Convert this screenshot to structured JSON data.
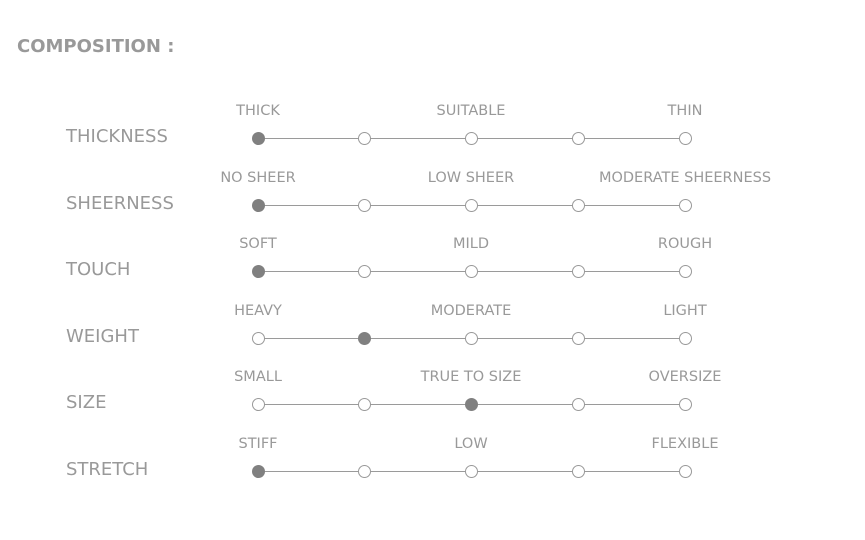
{
  "title": "COMPOSITION :",
  "colors": {
    "text": "#999999",
    "selected": "#808080",
    "line": "#9a9a9a"
  },
  "rows": [
    {
      "label": "THICKNESS",
      "options": [
        "THICK",
        "SUITABLE",
        "THIN"
      ],
      "selected_index": 0
    },
    {
      "label": "SHEERNESS",
      "options": [
        "NO SHEER",
        "LOW SHEER",
        "MODERATE SHEERNESS"
      ],
      "selected_index": 0
    },
    {
      "label": "TOUCH",
      "options": [
        "SOFT",
        "MILD",
        "ROUGH"
      ],
      "selected_index": 0
    },
    {
      "label": "WEIGHT",
      "options": [
        "HEAVY",
        "MODERATE",
        "LIGHT"
      ],
      "selected_index": 1
    },
    {
      "label": "SIZE",
      "options": [
        "SMALL",
        "TRUE TO SIZE",
        "OVERSIZE"
      ],
      "selected_index": 2
    },
    {
      "label": "STRETCH",
      "options": [
        "STIFF",
        "LOW",
        "FLEXIBLE"
      ],
      "selected_index": 0
    }
  ]
}
